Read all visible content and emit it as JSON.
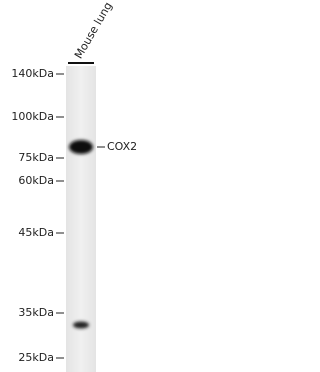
{
  "sample": {
    "label": "Mouse lung"
  },
  "markers": [
    "140kDa",
    "100kDa",
    "75kDa",
    "60kDa",
    "45kDa",
    "35kDa",
    "25kDa"
  ],
  "band": {
    "label": "COX2"
  }
}
